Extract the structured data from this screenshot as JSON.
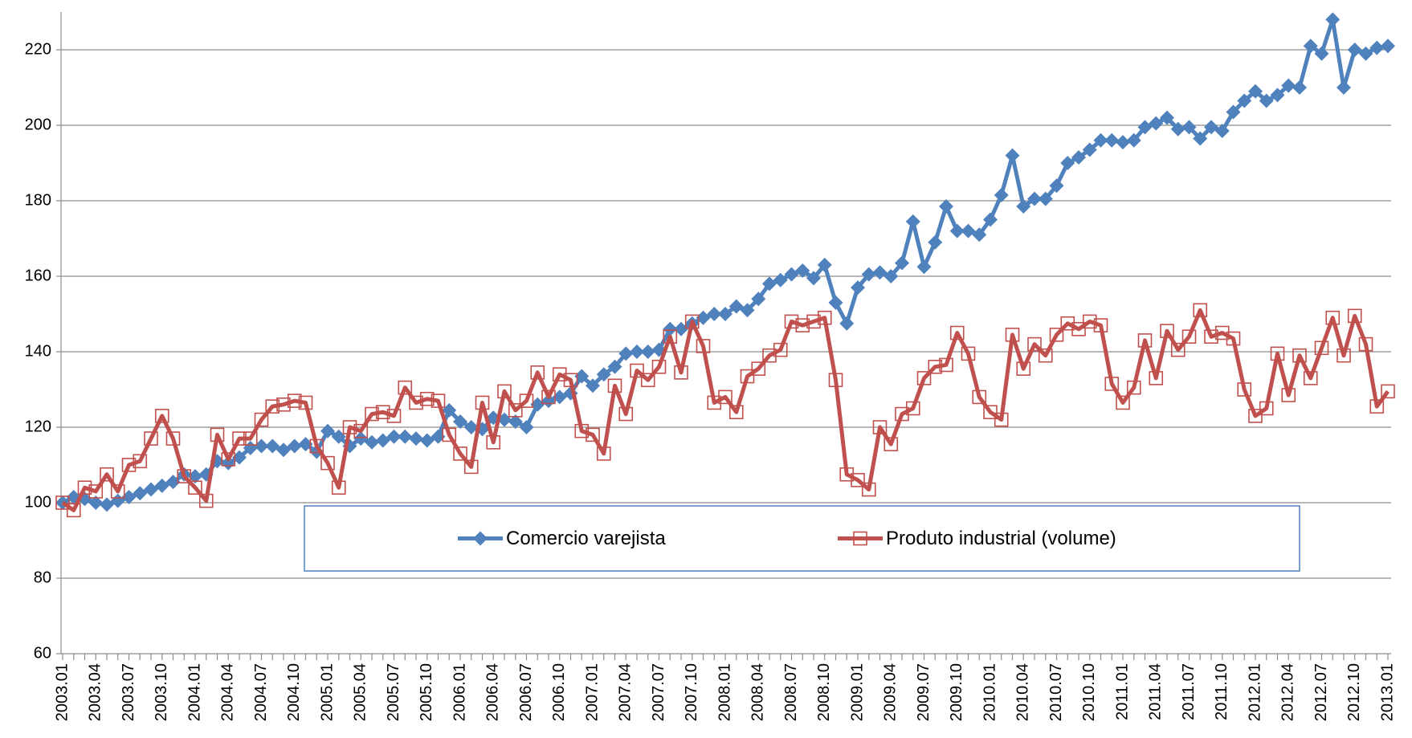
{
  "chart_data": {
    "type": "line",
    "categories": [
      "2003.01",
      null,
      null,
      "2003.04",
      null,
      null,
      "2003.07",
      null,
      null,
      "2003.10",
      null,
      null,
      "2004.01",
      null,
      null,
      "2004.04",
      null,
      null,
      "2004.07",
      null,
      null,
      "2004.10",
      null,
      null,
      "2005.01",
      null,
      null,
      "2005.04",
      null,
      null,
      "2005.07",
      null,
      null,
      "2005.10",
      null,
      null,
      "2006.01",
      null,
      null,
      "2006.04",
      null,
      null,
      "2006.07",
      null,
      null,
      "2006.10",
      null,
      null,
      "2007.01",
      null,
      null,
      "2007.04",
      null,
      null,
      "2007.07",
      null,
      null,
      "2007.10",
      null,
      null,
      "2008.01",
      null,
      null,
      "2008.04",
      null,
      null,
      "2008.07",
      null,
      null,
      "2008.10",
      null,
      null,
      "2009.01",
      null,
      null,
      "2009.04",
      null,
      null,
      "2009.07",
      null,
      null,
      "2009.10",
      null,
      null,
      "2010.01",
      null,
      null,
      "2010.04",
      null,
      null,
      "2010.07",
      null,
      null,
      "2010.10",
      null,
      null,
      "2011.01",
      null,
      null,
      "2011.04",
      null,
      null,
      "2011.07",
      null,
      null,
      "2011.10",
      null,
      null,
      "2012.01",
      null,
      null,
      "2012.04",
      null,
      null,
      "2012.07",
      null,
      null,
      "2012.10",
      null,
      null,
      "2013.01"
    ],
    "series": [
      {
        "name": "Comercio varejista",
        "color": "#4f81bd",
        "marker": "diamond",
        "values": [
          100,
          101.5,
          101,
          100,
          99.5,
          100.5,
          101.5,
          102.5,
          103.5,
          104.5,
          105.5,
          107.5,
          107,
          107.5,
          111,
          110.5,
          112,
          114.5,
          115,
          115,
          114,
          115,
          115.5,
          113.5,
          119,
          117.5,
          115,
          117,
          116,
          116.5,
          117.5,
          117.5,
          117,
          116.5,
          117.5,
          124.5,
          121.5,
          120,
          119.5,
          122.5,
          122,
          121.5,
          120,
          126,
          127,
          128,
          129,
          133.5,
          131,
          134,
          136,
          139.5,
          140,
          140,
          140.5,
          146,
          146,
          147.5,
          149,
          150,
          150,
          152,
          151,
          154,
          158,
          159,
          160.5,
          161.5,
          159.5,
          163,
          153,
          147.5,
          157,
          160.5,
          161,
          160,
          163.5,
          174.5,
          162.5,
          169,
          178.5,
          172,
          172,
          171,
          175,
          181.5,
          192,
          178.5,
          180.5,
          180.5,
          184,
          190,
          191.5,
          193.5,
          196,
          196,
          195.5,
          196,
          199.5,
          200.5,
          202,
          199,
          199.5,
          196.5,
          199.5,
          198.5,
          203.5,
          206.5,
          209,
          206.5,
          208,
          210.5,
          210,
          221,
          219,
          228,
          210,
          220,
          219,
          220.5,
          221
        ]
      },
      {
        "name": "Produto industrial (volume)",
        "color": "#c0504d",
        "marker": "square",
        "values": [
          100,
          98,
          104,
          103,
          107.5,
          103,
          110,
          111,
          117,
          123,
          117,
          107,
          104,
          100.5,
          118,
          111.5,
          117,
          117,
          122,
          125.5,
          126,
          127,
          126.5,
          115,
          110.5,
          104,
          120,
          119,
          123.5,
          124,
          123,
          130.5,
          126.5,
          127.5,
          127,
          118,
          113,
          109.5,
          126.5,
          116,
          129.5,
          124.5,
          127,
          134.5,
          128,
          134,
          132.5,
          119,
          118,
          113,
          131,
          123.5,
          135,
          132.5,
          136,
          144,
          134.5,
          148,
          141.5,
          126.5,
          128,
          124,
          133.5,
          135.5,
          139,
          140.5,
          148,
          147,
          148,
          149,
          132.5,
          107.5,
          106,
          103.5,
          120,
          115.5,
          123.5,
          125,
          133,
          136,
          136.5,
          145,
          139.5,
          128,
          124,
          122,
          144.5,
          135.5,
          142,
          139,
          144.5,
          147.5,
          146,
          148,
          147,
          131.5,
          126.5,
          130.5,
          143,
          133,
          145.5,
          140.5,
          144,
          151,
          144,
          145,
          143.5,
          130,
          123,
          125,
          139.5,
          128.5,
          139,
          133,
          141,
          149,
          139,
          149.5,
          142,
          125.5,
          129.5
        ]
      }
    ],
    "ylim": [
      60,
      230
    ],
    "yticks": [
      60,
      80,
      100,
      120,
      140,
      160,
      180,
      200,
      220
    ],
    "grid": true,
    "legend": "center"
  }
}
